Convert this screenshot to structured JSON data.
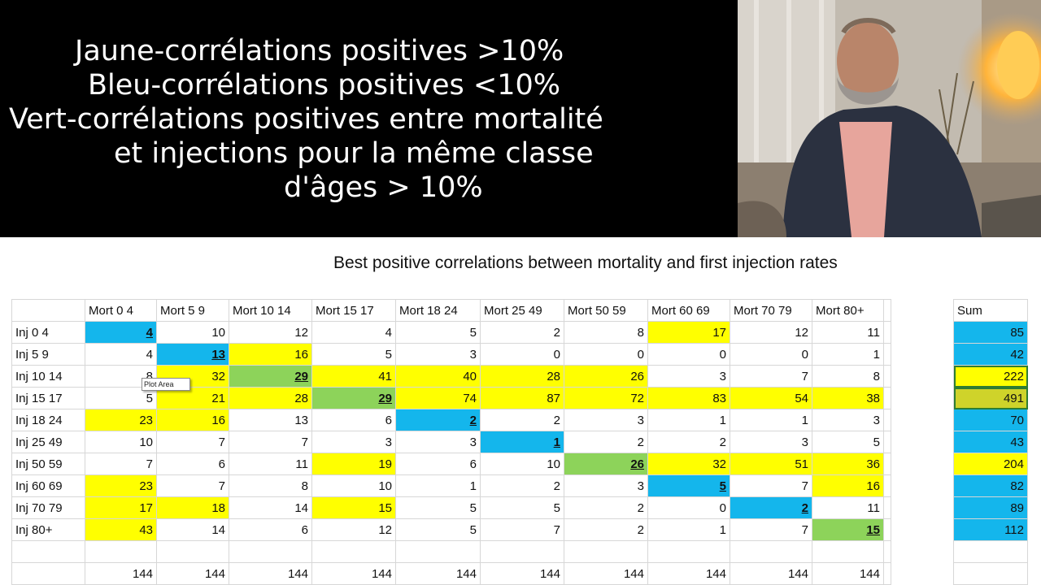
{
  "banner": {
    "lines": [
      "Jaune-corrélations positives >10%",
      "Bleu-corrélations positives <10%",
      "Vert-corrélations positives entre mortalité",
      "et injections pour la même classe",
      "d'âges > 10%"
    ]
  },
  "sheet": {
    "title": "Best positive correlations between mortality and first injection rates",
    "tooltip": "Plot Area",
    "columns": [
      "Mort 0 4",
      "Mort 5 9",
      "Mort 10 14",
      "Mort 15 17",
      "Mort 18 24",
      "Mort 25 49",
      "Mort 50 59",
      "Mort 60 69",
      "Mort 70 79",
      "Mort 80+"
    ],
    "sum_header": "Sum",
    "rows": [
      {
        "label": "Inj 0 4",
        "values": [
          "4",
          "10",
          "12",
          "4",
          "5",
          "2",
          "8",
          "17",
          "12",
          "11"
        ],
        "sum": "85"
      },
      {
        "label": "Inj 5 9",
        "values": [
          "4",
          "13",
          "16",
          "5",
          "3",
          "0",
          "0",
          "0",
          "0",
          "1"
        ],
        "sum": "42"
      },
      {
        "label": "Inj 10 14",
        "values": [
          "8",
          "32",
          "29",
          "41",
          "40",
          "28",
          "26",
          "3",
          "7",
          "8"
        ],
        "sum": "222"
      },
      {
        "label": "Inj 15 17",
        "values": [
          "5",
          "21",
          "28",
          "29",
          "74",
          "87",
          "72",
          "83",
          "54",
          "38"
        ],
        "sum": "491"
      },
      {
        "label": "Inj 18 24",
        "values": [
          "23",
          "16",
          "13",
          "6",
          "2",
          "2",
          "3",
          "1",
          "1",
          "3"
        ],
        "sum": "70"
      },
      {
        "label": "Inj 25 49",
        "values": [
          "10",
          "7",
          "7",
          "3",
          "3",
          "1",
          "2",
          "2",
          "3",
          "5"
        ],
        "sum": "43"
      },
      {
        "label": "Inj 50 59",
        "values": [
          "7",
          "6",
          "11",
          "19",
          "6",
          "10",
          "26",
          "32",
          "51",
          "36"
        ],
        "sum": "204"
      },
      {
        "label": "Inj 60 69",
        "values": [
          "23",
          "7",
          "8",
          "10",
          "1",
          "2",
          "3",
          "5",
          "7",
          "16"
        ],
        "sum": "82"
      },
      {
        "label": "Inj 70 79",
        "values": [
          "17",
          "18",
          "14",
          "15",
          "5",
          "5",
          "2",
          "0",
          "2",
          "11"
        ],
        "sum": "89"
      },
      {
        "label": "Inj 80+",
        "values": [
          "43",
          "14",
          "6",
          "12",
          "5",
          "7",
          "2",
          "1",
          "7",
          "15"
        ],
        "sum": "112"
      }
    ],
    "totals": [
      "144",
      "144",
      "144",
      "144",
      "144",
      "144",
      "144",
      "144",
      "144",
      "144"
    ],
    "colors": {
      "yellow": "#ffff00",
      "blue": "#14b6ec",
      "green": "#8dd35a"
    }
  }
}
